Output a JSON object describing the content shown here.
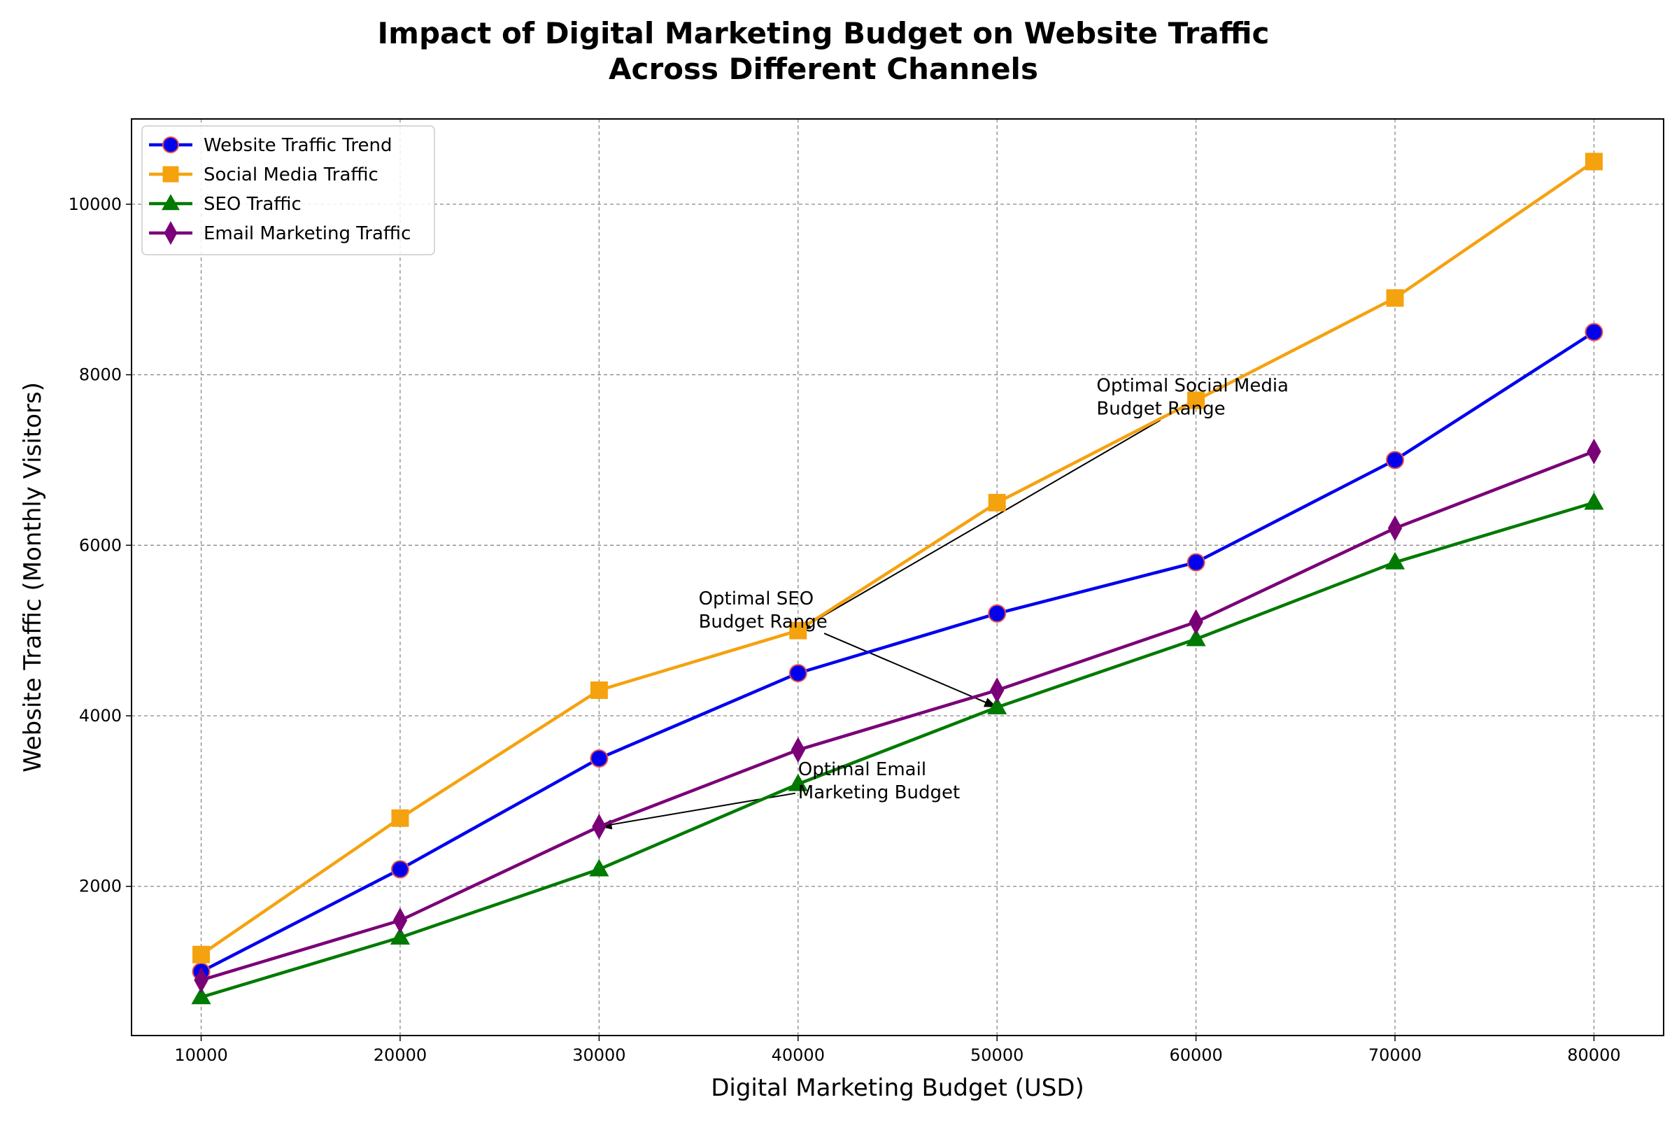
{
  "chart_data": {
    "type": "line",
    "title_line1": "Impact of Digital Marketing Budget on Website Traffic",
    "title_line2": "Across Different Channels",
    "xlabel": "Digital Marketing Budget (USD)",
    "ylabel": "Website Traffic (Monthly Visitors)",
    "x": [
      10000,
      20000,
      30000,
      40000,
      50000,
      60000,
      70000,
      80000
    ],
    "xlim": [
      6500,
      83500
    ],
    "ylim": [
      250,
      11000
    ],
    "xticks": [
      "10000",
      "20000",
      "30000",
      "40000",
      "50000",
      "60000",
      "70000",
      "80000"
    ],
    "yticks": [
      "2000",
      "4000",
      "6000",
      "8000",
      "10000"
    ],
    "grid": true,
    "legend_position": "top-left",
    "series": [
      {
        "name": "Website Traffic Trend",
        "color": "#0000ee",
        "edge": "#e8504a",
        "marker": "circle",
        "values": [
          1000,
          2200,
          3500,
          4500,
          5200,
          5800,
          7000,
          8500
        ]
      },
      {
        "name": "Social Media Traffic",
        "color": "#f5a20f",
        "edge": "#f5a20f",
        "marker": "square",
        "values": [
          1200,
          2800,
          4300,
          5000,
          6500,
          7700,
          8900,
          10500
        ]
      },
      {
        "name": "SEO Traffic",
        "color": "#007a00",
        "edge": "#007a00",
        "marker": "triangle",
        "values": [
          700,
          1400,
          2200,
          3200,
          4100,
          4900,
          5800,
          6500
        ]
      },
      {
        "name": "Email Marketing Traffic",
        "color": "#7a0078",
        "edge": "#7a0078",
        "marker": "diamond",
        "values": [
          900,
          1600,
          2700,
          3600,
          4300,
          5100,
          6200,
          7100
        ]
      }
    ],
    "annotations": [
      {
        "lines": [
          "Optimal Social Media",
          "Budget Range"
        ],
        "text_x": 55000,
        "text_y": 7500,
        "arrow_x": 40000,
        "arrow_y": 5000
      },
      {
        "lines": [
          "Optimal SEO",
          "Budget Range"
        ],
        "text_x": 35000,
        "text_y": 5000,
        "arrow_x": 50000,
        "arrow_y": 4100
      },
      {
        "lines": [
          "Optimal Email",
          "Marketing Budget"
        ],
        "text_x": 40000,
        "text_y": 3000,
        "arrow_x": 30000,
        "arrow_y": 2700
      }
    ]
  }
}
